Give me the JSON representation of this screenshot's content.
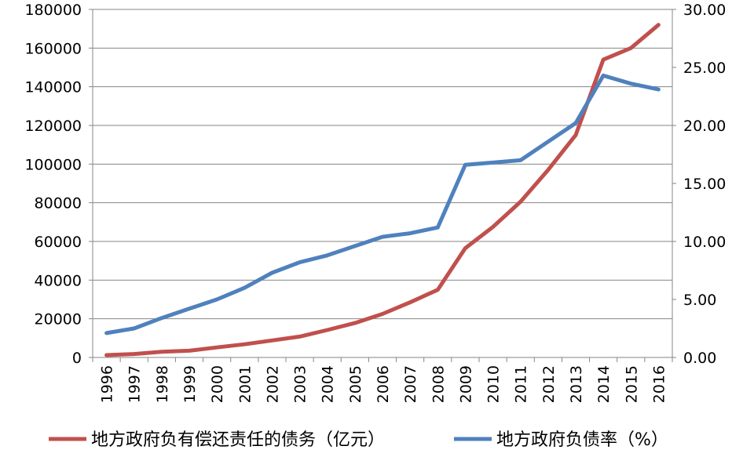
{
  "chart_data": {
    "type": "line",
    "title": "",
    "xlabel": "",
    "ylabel": "",
    "categories": [
      "1996",
      "1997",
      "1998",
      "1999",
      "2000",
      "2001",
      "2002",
      "2003",
      "2004",
      "2005",
      "2006",
      "2007",
      "2008",
      "2009",
      "2010",
      "2011",
      "2012",
      "2013",
      "2014",
      "2015",
      "2016"
    ],
    "y_left": {
      "range": [
        0,
        180000
      ],
      "ticks": [
        "0",
        "20000",
        "40000",
        "60000",
        "80000",
        "100000",
        "120000",
        "140000",
        "160000",
        "180000"
      ]
    },
    "y_right": {
      "range": [
        0,
        30
      ],
      "ticks": [
        "0.00",
        "5.00",
        "10.00",
        "15.00",
        "20.00",
        "25.00",
        "30.00"
      ]
    },
    "grid": true,
    "legend_position": "bottom",
    "series": [
      {
        "name": "地方政府负有偿还责任的债务（亿元）",
        "axis": "left",
        "color": "#c0504d",
        "values": [
          1200,
          1800,
          2900,
          3500,
          5200,
          6800,
          8800,
          10800,
          14200,
          17800,
          22500,
          28500,
          35000,
          56500,
          67500,
          80500,
          97000,
          115000,
          154000,
          160000,
          172000
        ]
      },
      {
        "name": "地方政府负债率（%）",
        "axis": "right",
        "color": "#4f81bd",
        "values": [
          2.1,
          2.5,
          3.4,
          4.2,
          5.0,
          6.0,
          7.3,
          8.2,
          8.8,
          9.6,
          10.4,
          10.7,
          11.2,
          16.6,
          16.8,
          17.0,
          18.6,
          20.2,
          24.3,
          23.6,
          23.1
        ]
      }
    ]
  }
}
